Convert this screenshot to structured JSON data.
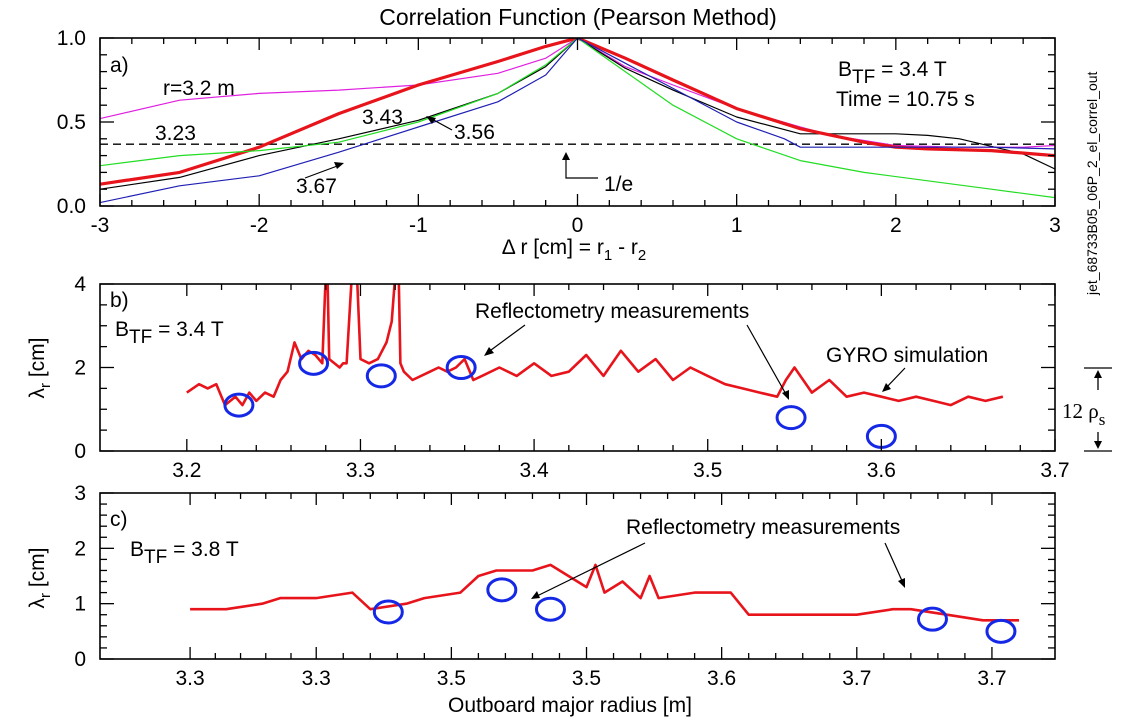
{
  "figure_id": "jet_68733B05_06P_2_el_correl_out",
  "colors": {
    "red": "#e8141c",
    "blue": "#1428e6",
    "green": "#22dd22",
    "magenta": "#e020e0",
    "black": "#000000",
    "navy": "#1f1fb4"
  },
  "chart_data": [
    {
      "type": "line",
      "panel": "a)",
      "title": "Correlation Function (Pearson Method)",
      "xlabel_parts": [
        "Δ r [cm] = r",
        "1",
        " - r",
        "2"
      ],
      "ylabel": "",
      "xlim": [
        -3,
        3
      ],
      "ylim": [
        0,
        1
      ],
      "xticks": [
        "-3",
        "-2",
        "-1",
        "0",
        "1",
        "2",
        "3"
      ],
      "yticks": [
        "0.0",
        "0.5",
        "1.0"
      ],
      "annotations": {
        "btf_parts": [
          "B",
          "TF",
          " = 3.4 T"
        ],
        "time": "Time = 10.75 s",
        "label_r32": "r=3.2 m",
        "label_323": "3.23",
        "label_343": "3.43",
        "label_356": "3.56",
        "label_367": "3.67",
        "label_1e": "1/e"
      },
      "reference_line_y": 0.368,
      "series": [
        {
          "label": "r=3.2 m",
          "color": "#e020e0",
          "width": 1.2,
          "x": [
            -3,
            -2.5,
            -2,
            -1.5,
            -1,
            -0.5,
            -0.2,
            0,
            0.3,
            0.6,
            1,
            1.4,
            1.6,
            1.8,
            2,
            2.4,
            2.8,
            3
          ],
          "y": [
            0.52,
            0.63,
            0.67,
            0.69,
            0.72,
            0.79,
            0.88,
            1.0,
            0.83,
            0.72,
            0.58,
            0.47,
            0.42,
            0.39,
            0.36,
            0.35,
            0.35,
            0.36
          ]
        },
        {
          "label": "3.23",
          "color": "#000000",
          "width": 1.2,
          "x": [
            -3,
            -2.5,
            -2,
            -1.5,
            -1,
            -0.5,
            -0.2,
            0,
            0.3,
            0.6,
            1,
            1.4,
            1.6,
            1.8,
            2,
            2.2,
            2.4,
            2.8,
            3
          ],
          "y": [
            0.1,
            0.17,
            0.3,
            0.4,
            0.51,
            0.67,
            0.83,
            1.0,
            0.82,
            0.69,
            0.53,
            0.43,
            0.43,
            0.43,
            0.43,
            0.42,
            0.4,
            0.31,
            0.22
          ]
        },
        {
          "label": "3.43",
          "color": "#e8141c",
          "width": 3.2,
          "x": [
            -3,
            -2.5,
            -2,
            -1.5,
            -1,
            -0.5,
            -0.2,
            0,
            0.3,
            0.6,
            1,
            1.4,
            1.6,
            1.8,
            2,
            2.2,
            2.6,
            3
          ],
          "y": [
            0.13,
            0.2,
            0.35,
            0.55,
            0.72,
            0.86,
            0.95,
            1.0,
            0.88,
            0.75,
            0.58,
            0.46,
            0.42,
            0.38,
            0.35,
            0.34,
            0.33,
            0.3
          ]
        },
        {
          "label": "3.56",
          "color": "#22dd22",
          "width": 1.2,
          "x": [
            -3,
            -2.5,
            -2,
            -1.5,
            -1,
            -0.5,
            -0.2,
            0,
            0.3,
            0.6,
            1,
            1.4,
            1.8,
            2.2,
            2.6,
            3
          ],
          "y": [
            0.24,
            0.3,
            0.33,
            0.38,
            0.5,
            0.67,
            0.84,
            1.0,
            0.8,
            0.6,
            0.4,
            0.27,
            0.2,
            0.15,
            0.1,
            0.05
          ]
        },
        {
          "label": "3.67",
          "color": "#1f1fb4",
          "width": 1.2,
          "x": [
            -3,
            -2.5,
            -2,
            -1.5,
            -1,
            -0.5,
            -0.2,
            0,
            0.3,
            0.6,
            1,
            1.3,
            1.4,
            1.8,
            2.2,
            2.6,
            3
          ],
          "y": [
            0.02,
            0.12,
            0.18,
            0.32,
            0.47,
            0.62,
            0.78,
            1.0,
            0.85,
            0.7,
            0.5,
            0.4,
            0.35,
            0.35,
            0.35,
            0.35,
            0.34
          ]
        }
      ]
    },
    {
      "type": "line",
      "panel": "b)",
      "title": "",
      "xlabel": "",
      "ylabel_parts": [
        "λ",
        "r",
        " [cm]"
      ],
      "xlim": [
        3.15,
        3.7
      ],
      "ylim": [
        0,
        4
      ],
      "xticks": [
        "3.2",
        "3.3",
        "3.4",
        "3.5",
        "3.6",
        "3.7"
      ],
      "yticks": [
        "0",
        "2",
        "4"
      ],
      "annotations": {
        "btf_parts": [
          "B",
          "TF",
          " = 3.4 T"
        ],
        "reflectometry": "Reflectometry measurements",
        "gyro": "GYRO simulation",
        "rho_parts": [
          "12 ρ",
          "s"
        ]
      },
      "series": [
        {
          "name": "GYRO simulation",
          "color": "#e8141c",
          "x": [
            3.2,
            3.207,
            3.212,
            3.217,
            3.222,
            3.228,
            3.232,
            3.236,
            3.24,
            3.245,
            3.25,
            3.254,
            3.258,
            3.262,
            3.266,
            3.27,
            3.274,
            3.278,
            3.28,
            3.281,
            3.282,
            3.285,
            3.288,
            3.29,
            3.292,
            3.295,
            3.298,
            3.3,
            3.305,
            3.31,
            3.315,
            3.318,
            3.32,
            3.322,
            3.323,
            3.325,
            3.33,
            3.34,
            3.345,
            3.35,
            3.355,
            3.36,
            3.365,
            3.37,
            3.38,
            3.39,
            3.4,
            3.41,
            3.42,
            3.43,
            3.44,
            3.45,
            3.46,
            3.47,
            3.48,
            3.49,
            3.5,
            3.51,
            3.52,
            3.53,
            3.54,
            3.545,
            3.55,
            3.56,
            3.57,
            3.58,
            3.59,
            3.6,
            3.61,
            3.62,
            3.63,
            3.64,
            3.65,
            3.66,
            3.67
          ],
          "y": [
            1.4,
            1.6,
            1.5,
            1.6,
            1.1,
            1.3,
            1.1,
            1.4,
            1.2,
            1.4,
            1.3,
            1.7,
            1.9,
            2.6,
            2.2,
            2.4,
            2.3,
            2.1,
            4.2,
            4.2,
            2.2,
            2.1,
            2.0,
            2.1,
            2.1,
            4.2,
            4.2,
            2.2,
            2.1,
            2.2,
            2.6,
            3.1,
            4.2,
            4.2,
            2.1,
            1.9,
            1.7,
            1.9,
            2.0,
            1.9,
            2.0,
            2.2,
            1.7,
            1.8,
            2.0,
            1.8,
            2.1,
            1.8,
            1.9,
            2.3,
            1.8,
            2.4,
            1.9,
            2.2,
            1.7,
            2.0,
            1.8,
            1.6,
            1.5,
            1.4,
            1.3,
            1.7,
            2.0,
            1.4,
            1.7,
            1.3,
            1.4,
            1.3,
            1.2,
            1.3,
            1.2,
            1.1,
            1.3,
            1.2,
            1.3
          ]
        },
        {
          "name": "Reflectometry measurements",
          "type": "scatter",
          "color": "#1428e6",
          "x": [
            3.23,
            3.273,
            3.312,
            3.358,
            3.548,
            3.6
          ],
          "y": [
            1.1,
            2.1,
            1.8,
            2.0,
            0.8,
            0.35
          ]
        }
      ]
    },
    {
      "type": "line",
      "panel": "c)",
      "title": "",
      "xlabel": "Outboard major radius [m]",
      "ylabel_parts": [
        "λ",
        "r",
        " [cm]"
      ],
      "xlim": [
        3.25,
        3.78
      ],
      "ylim": [
        0,
        3
      ],
      "xticks": [
        "3.3",
        "3.3",
        "3.5",
        "3.5",
        "3.6",
        "3.7",
        "3.7"
      ],
      "yticks": [
        "0",
        "1",
        "2",
        "3"
      ],
      "annotations": {
        "btf_parts": [
          "B",
          "TF",
          " = 3.8 T"
        ],
        "reflectometry": "Reflectometry measurements"
      },
      "series": [
        {
          "name": "GYRO simulation",
          "color": "#e8141c",
          "x": [
            3.3,
            3.32,
            3.34,
            3.35,
            3.37,
            3.39,
            3.4,
            3.42,
            3.43,
            3.45,
            3.46,
            3.47,
            3.48,
            3.49,
            3.5,
            3.51,
            3.52,
            3.525,
            3.53,
            3.54,
            3.55,
            3.555,
            3.56,
            3.58,
            3.6,
            3.61,
            3.63,
            3.65,
            3.67,
            3.69,
            3.7,
            3.72,
            3.74,
            3.76
          ],
          "y": [
            0.9,
            0.9,
            1.0,
            1.1,
            1.1,
            1.2,
            0.9,
            1.0,
            1.1,
            1.2,
            1.5,
            1.6,
            1.6,
            1.6,
            1.7,
            1.5,
            1.3,
            1.7,
            1.2,
            1.4,
            1.1,
            1.5,
            1.1,
            1.2,
            1.2,
            0.8,
            0.8,
            0.8,
            0.8,
            0.9,
            0.9,
            0.8,
            0.7,
            0.7
          ]
        },
        {
          "name": "Reflectometry measurements",
          "type": "scatter",
          "color": "#1428e6",
          "x": [
            3.41,
            3.473,
            3.5,
            3.712,
            3.75
          ],
          "y": [
            0.85,
            1.25,
            0.9,
            0.72,
            0.5
          ]
        }
      ]
    }
  ]
}
